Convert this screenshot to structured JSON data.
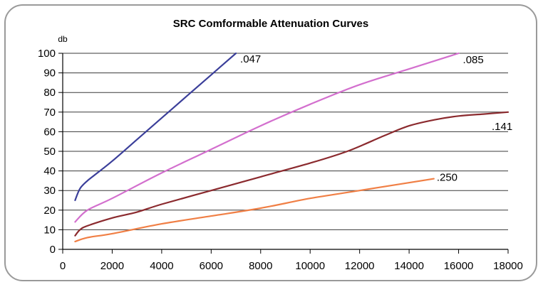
{
  "chart_data": {
    "type": "line",
    "title": "SRC Comformable Attenuation Curves",
    "ylabel": "db",
    "xlabel": "",
    "xlim": [
      0,
      18000
    ],
    "ylim": [
      0,
      100
    ],
    "x_ticks": [
      0,
      2000,
      4000,
      6000,
      8000,
      10000,
      12000,
      14000,
      16000,
      18000
    ],
    "y_ticks": [
      0,
      10,
      20,
      30,
      40,
      50,
      60,
      70,
      80,
      90,
      100
    ],
    "grid": "horizontal",
    "legend": "none",
    "series": [
      {
        "name": ".047",
        "color": "#3b3f9a",
        "x": [
          500,
          700,
          1000,
          1300,
          2000,
          3000,
          4000,
          5000,
          6000,
          7000
        ],
        "y": [
          25,
          31,
          35,
          38,
          45,
          56,
          67,
          78,
          89,
          100
        ]
      },
      {
        "name": ".085",
        "color": "#d36fce",
        "x": [
          500,
          1000,
          2000,
          4000,
          6000,
          8000,
          10000,
          12000,
          14000,
          16000
        ],
        "y": [
          14,
          20,
          26,
          39,
          51,
          63,
          74,
          84,
          92,
          100
        ]
      },
      {
        "name": ".141",
        "color": "#8b2a2e",
        "x": [
          500,
          700,
          1000,
          2000,
          3000,
          4000,
          6000,
          8000,
          10000,
          11500,
          13000,
          14000,
          15000,
          16000,
          17000,
          18000
        ],
        "y": [
          7,
          10,
          12,
          16,
          19,
          23,
          30,
          37,
          44,
          50,
          58,
          63,
          66,
          68,
          69,
          70
        ]
      },
      {
        "name": ".250",
        "color": "#f07f45",
        "x": [
          500,
          1000,
          2000,
          4000,
          6000,
          8000,
          10000,
          12000,
          15000
        ],
        "y": [
          4,
          6,
          8,
          13,
          17,
          21,
          26,
          30,
          36
        ]
      }
    ]
  }
}
